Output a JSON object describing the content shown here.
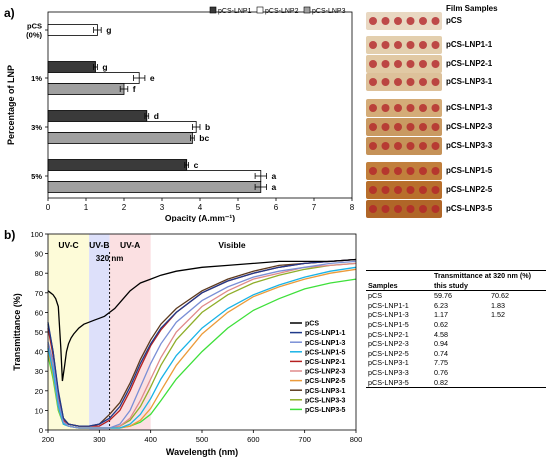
{
  "panel_a": {
    "letter": "a)",
    "film_samples_title": "Film Samples",
    "sample_labels": [
      "pCS",
      "pCS-LNP1-1",
      "pCS-LNP2-1",
      "pCS-LNP3-1",
      "pCS-LNP1-3",
      "pCS-LNP2-3",
      "pCS-LNP3-3",
      "pCS-LNP1-5",
      "pCS-LNP2-5",
      "pCS-LNP3-5"
    ],
    "swatch_colors": [
      "#e9d8c2",
      "#e3cfae",
      "#e1c9a4",
      "#ddc19a",
      "#d4ac78",
      "#c99a62",
      "#c59258",
      "#c17f3c",
      "#b86f2c",
      "#b06628"
    ]
  },
  "panel_b": {
    "letter": "b)",
    "region_labels": {
      "uvc": "UV-C",
      "uvb": "UV-B",
      "uva": "UV-A",
      "visible": "Visible",
      "marker": "320 nm"
    },
    "table": {
      "col_samples": "Samples",
      "col_transmittance": "Transmittance at 320 nm (%)",
      "col_this_study": "this study",
      "rows": [
        {
          "sample": "pCS",
          "t": "59.76",
          "this_study": "70.62"
        },
        {
          "sample": "pCS-LNP1-1",
          "t": "6.23",
          "this_study": "1.83"
        },
        {
          "sample": "pCS-LNP1-3",
          "t": "1.17",
          "this_study": "1.52"
        },
        {
          "sample": "pCS-LNP1-5",
          "t": "0.62",
          "this_study": ""
        },
        {
          "sample": "pCS-LNP2-1",
          "t": "4.58",
          "this_study": ""
        },
        {
          "sample": "pCS-LNP2-3",
          "t": "0.94",
          "this_study": ""
        },
        {
          "sample": "pCS-LNP2-5",
          "t": "0.74",
          "this_study": ""
        },
        {
          "sample": "pCS-LNP3-1",
          "t": "7.75",
          "this_study": ""
        },
        {
          "sample": "pCS-LNP3-3",
          "t": "0.76",
          "this_study": ""
        },
        {
          "sample": "pCS-LNP3-5",
          "t": "0.82",
          "this_study": ""
        }
      ]
    }
  },
  "chart_data": [
    {
      "type": "bar",
      "orientation": "horizontal",
      "xlabel": "Opacity (A.mm⁻¹)",
      "ylabel": "Percentage of LNP",
      "xlim": [
        0,
        8
      ],
      "xticks": [
        "0",
        "1",
        "2",
        "3",
        "4",
        "5",
        "6",
        "7",
        "8"
      ],
      "categories": [
        "pCS\n(0%)",
        "1%",
        "3%",
        "5%"
      ],
      "legend_position": "top-right",
      "series": [
        {
          "name": "pCS-LNP1",
          "color": "#3a3a3a",
          "values": [
            null,
            1.25,
            2.6,
            3.65
          ],
          "errors": [
            null,
            0.05,
            0.05,
            0.05
          ],
          "letters": [
            null,
            "g",
            "d",
            "c"
          ]
        },
        {
          "name": "pCS-LNP2",
          "color": "#ffffff",
          "values": [
            null,
            2.4,
            3.9,
            5.6
          ],
          "errors": [
            null,
            0.15,
            0.1,
            0.15
          ],
          "letters": [
            null,
            "e",
            "b",
            "a"
          ]
        },
        {
          "name": "pCS-LNP3",
          "color": "#a0a0a0",
          "values": [
            null,
            2.0,
            3.8,
            5.6
          ],
          "errors": [
            null,
            0.1,
            0.05,
            0.15
          ],
          "letters": [
            null,
            "f",
            "bc",
            "a"
          ]
        }
      ],
      "control": {
        "category": "pCS\n(0%)",
        "value": 1.3,
        "error": 0.1,
        "letter": "g",
        "color": "#ffffff"
      }
    },
    {
      "type": "line",
      "xlabel": "Wavelength (nm)",
      "ylabel": "Transmittance (%)",
      "xlim": [
        200,
        800
      ],
      "ylim": [
        0,
        100
      ],
      "xticks": [
        "200",
        "300",
        "400",
        "500",
        "600",
        "700",
        "800"
      ],
      "yticks": [
        "0",
        "10",
        "20",
        "30",
        "40",
        "50",
        "60",
        "70",
        "80",
        "90",
        "100"
      ],
      "marker_wavelength": 320,
      "regions": [
        {
          "name": "UV-C",
          "from": 200,
          "to": 280,
          "color": "#fdfbd8"
        },
        {
          "name": "UV-B",
          "from": 280,
          "to": 320,
          "color": "#dde0fa"
        },
        {
          "name": "UV-A",
          "from": 320,
          "to": 400,
          "color": "#fbe0e2"
        }
      ],
      "legend_position": "right",
      "series": [
        {
          "name": "pCS",
          "color": "#000000",
          "x": [
            200,
            205,
            210,
            215,
            220,
            225,
            228,
            232,
            236,
            240,
            245,
            250,
            260,
            270,
            280,
            290,
            300,
            310,
            320,
            330,
            340,
            350,
            360,
            370,
            380,
            400,
            420,
            450,
            500,
            550,
            600,
            650,
            700,
            750,
            800
          ],
          "y": [
            71,
            70,
            69,
            67,
            63,
            42,
            25,
            32,
            40,
            44,
            47,
            49,
            52,
            54,
            55,
            56,
            57,
            58,
            60,
            62,
            65,
            68,
            71,
            73,
            75,
            77,
            79,
            81,
            83,
            84,
            85,
            86,
            86,
            86,
            87
          ]
        },
        {
          "name": "pCS-LNP1-1",
          "color": "#1f3a8a",
          "x": [
            200,
            210,
            220,
            230,
            240,
            260,
            280,
            300,
            320,
            340,
            360,
            370,
            380,
            400,
            420,
            450,
            500,
            550,
            600,
            650,
            700,
            750,
            800
          ],
          "y": [
            55,
            40,
            20,
            6,
            3,
            2,
            2,
            3,
            6,
            12,
            22,
            28,
            34,
            44,
            52,
            60,
            70,
            76,
            80,
            83,
            85,
            86,
            87
          ]
        },
        {
          "name": "pCS-LNP1-3",
          "color": "#7a8fd6",
          "x": [
            200,
            210,
            220,
            230,
            240,
            260,
            280,
            300,
            320,
            340,
            360,
            380,
            400,
            420,
            450,
            500,
            550,
            600,
            650,
            700,
            750,
            800
          ],
          "y": [
            45,
            35,
            15,
            4,
            2,
            1,
            1,
            1,
            1,
            3,
            10,
            22,
            34,
            44,
            55,
            66,
            73,
            78,
            81,
            83,
            85,
            86
          ]
        },
        {
          "name": "pCS-LNP1-5",
          "color": "#19b3e6",
          "x": [
            200,
            210,
            220,
            230,
            240,
            260,
            280,
            300,
            320,
            340,
            360,
            380,
            400,
            420,
            450,
            500,
            550,
            600,
            650,
            700,
            750,
            800
          ],
          "y": [
            42,
            30,
            12,
            3,
            2,
            1,
            1,
            1,
            1,
            1,
            3,
            8,
            16,
            26,
            38,
            52,
            62,
            69,
            74,
            78,
            81,
            83
          ]
        },
        {
          "name": "pCS-LNP2-1",
          "color": "#b52020",
          "x": [
            200,
            210,
            220,
            230,
            240,
            260,
            280,
            300,
            320,
            340,
            360,
            370,
            380,
            400,
            420,
            450,
            500,
            550,
            600,
            650,
            700,
            750,
            800
          ],
          "y": [
            52,
            38,
            18,
            5,
            3,
            2,
            2,
            2,
            5,
            10,
            20,
            26,
            32,
            43,
            51,
            60,
            70,
            76,
            80,
            83,
            85,
            86,
            87
          ]
        },
        {
          "name": "pCS-LNP2-3",
          "color": "#e08a8a",
          "x": [
            200,
            210,
            220,
            230,
            240,
            260,
            280,
            300,
            320,
            340,
            360,
            380,
            400,
            420,
            450,
            500,
            550,
            600,
            650,
            700,
            750,
            800
          ],
          "y": [
            44,
            33,
            14,
            4,
            2,
            1,
            1,
            1,
            1,
            2,
            6,
            15,
            26,
            37,
            50,
            63,
            71,
            77,
            80,
            83,
            84,
            85
          ]
        },
        {
          "name": "pCS-LNP2-5",
          "color": "#ec9b3a",
          "x": [
            200,
            210,
            220,
            230,
            240,
            260,
            280,
            300,
            320,
            340,
            360,
            380,
            400,
            420,
            450,
            500,
            550,
            600,
            650,
            700,
            750,
            800
          ],
          "y": [
            40,
            28,
            11,
            3,
            2,
            1,
            1,
            1,
            1,
            1,
            2,
            5,
            11,
            20,
            33,
            49,
            60,
            68,
            73,
            77,
            80,
            82
          ]
        },
        {
          "name": "pCS-LNP3-1",
          "color": "#5c3a1e",
          "x": [
            200,
            210,
            220,
            230,
            240,
            260,
            280,
            300,
            320,
            340,
            360,
            370,
            380,
            400,
            420,
            450,
            500,
            550,
            600,
            650,
            700,
            750,
            800
          ],
          "y": [
            54,
            40,
            19,
            6,
            3,
            2,
            2,
            3,
            8,
            14,
            24,
            30,
            36,
            46,
            54,
            62,
            71,
            77,
            81,
            84,
            85,
            86,
            87
          ]
        },
        {
          "name": "pCS-LNP3-3",
          "color": "#8fae2a",
          "x": [
            200,
            210,
            220,
            230,
            240,
            260,
            280,
            300,
            320,
            340,
            360,
            380,
            400,
            420,
            450,
            500,
            550,
            600,
            650,
            700,
            750,
            800
          ],
          "y": [
            43,
            32,
            13,
            4,
            2,
            1,
            1,
            1,
            1,
            2,
            5,
            12,
            22,
            33,
            46,
            60,
            69,
            75,
            79,
            82,
            84,
            85
          ]
        },
        {
          "name": "pCS-LNP3-5",
          "color": "#3ee03a",
          "x": [
            200,
            210,
            220,
            230,
            240,
            260,
            280,
            300,
            320,
            340,
            360,
            380,
            400,
            420,
            450,
            500,
            550,
            600,
            650,
            700,
            750,
            800
          ],
          "y": [
            38,
            26,
            10,
            3,
            2,
            1,
            1,
            1,
            1,
            1,
            2,
            4,
            8,
            15,
            26,
            40,
            52,
            61,
            67,
            72,
            75,
            77
          ]
        }
      ]
    }
  ]
}
